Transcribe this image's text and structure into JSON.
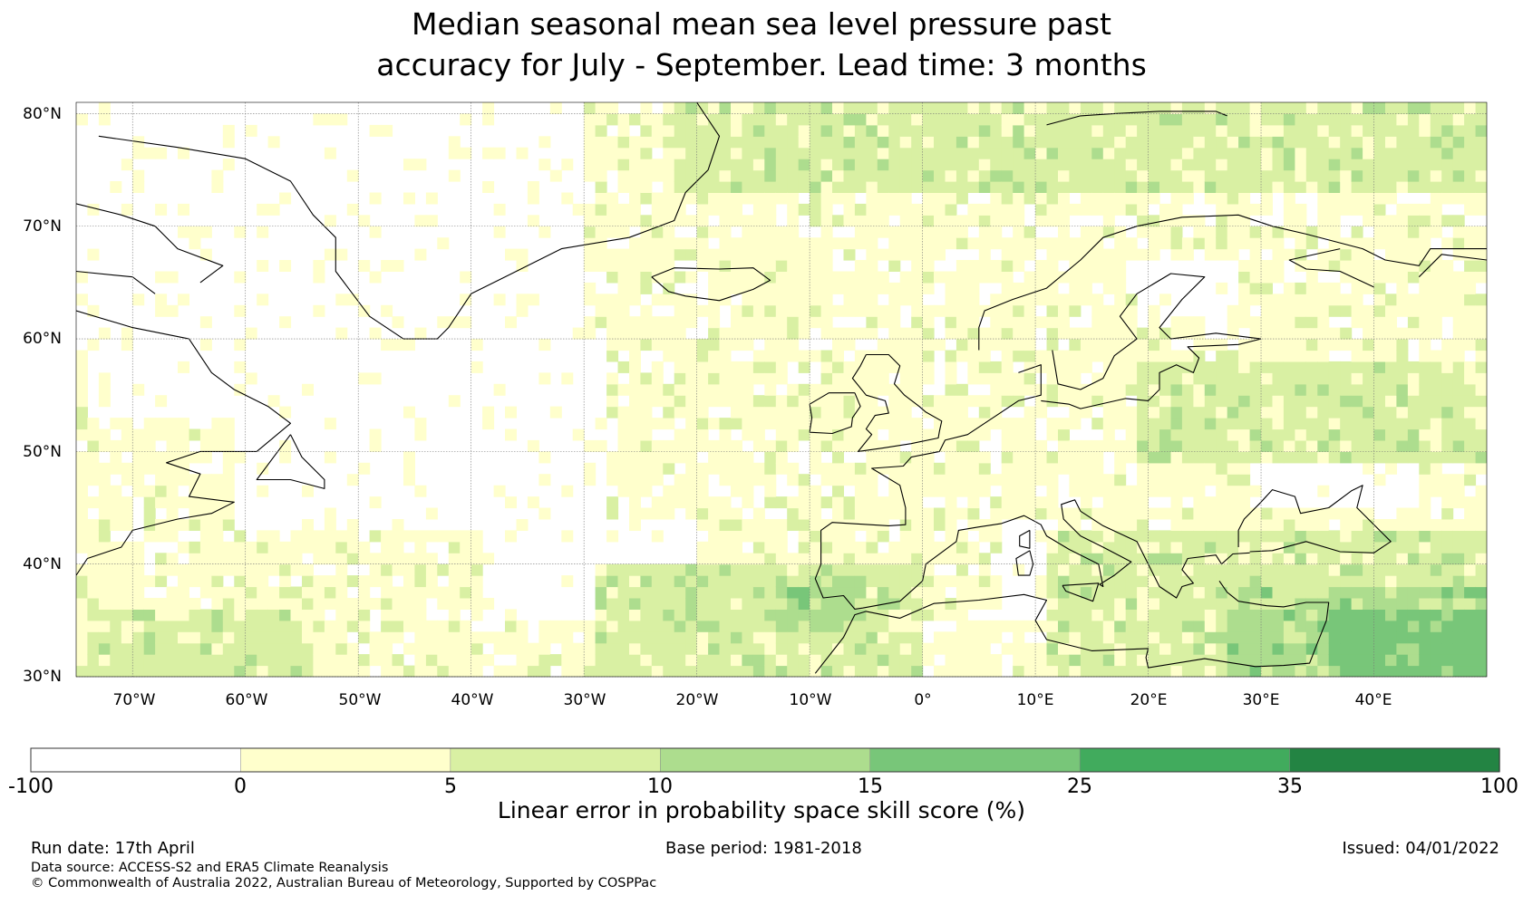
{
  "title": {
    "line1": "Median seasonal mean sea level pressure past",
    "line2": "accuracy for July - September. Lead time: 3 months"
  },
  "map": {
    "lon_range": [
      -75,
      50
    ],
    "lat_range": [
      30,
      81
    ],
    "lat_ticks": [
      "80°N",
      "70°N",
      "60°N",
      "50°N",
      "40°N",
      "30°N"
    ],
    "lon_ticks": [
      "70°W",
      "60°W",
      "50°W",
      "40°W",
      "30°W",
      "20°W",
      "10°W",
      "0°",
      "10°E",
      "20°E",
      "30°E",
      "40°E"
    ],
    "gridlines": true
  },
  "colorbar": {
    "title": "Linear error in probability space skill score (%)",
    "boundaries": [
      "-100",
      "0",
      "5",
      "10",
      "15",
      "25",
      "35",
      "100"
    ],
    "colors": [
      "#ffffff",
      "#ffffcc",
      "#d9f0a3",
      "#addd8e",
      "#78c679",
      "#41ab5d",
      "#238443"
    ]
  },
  "footer": {
    "run_date": "Run date: 17th April",
    "base_period": "Base period: 1981-2018",
    "issued": "Issued: 04/01/2022",
    "data_source": "Data source: ACCESS-S2 and ERA5 Climate Reanalysis",
    "copyright": "© Commonwealth of Australia 2022, Australian Bureau of Meteorology, Supported by COSPPac"
  }
}
